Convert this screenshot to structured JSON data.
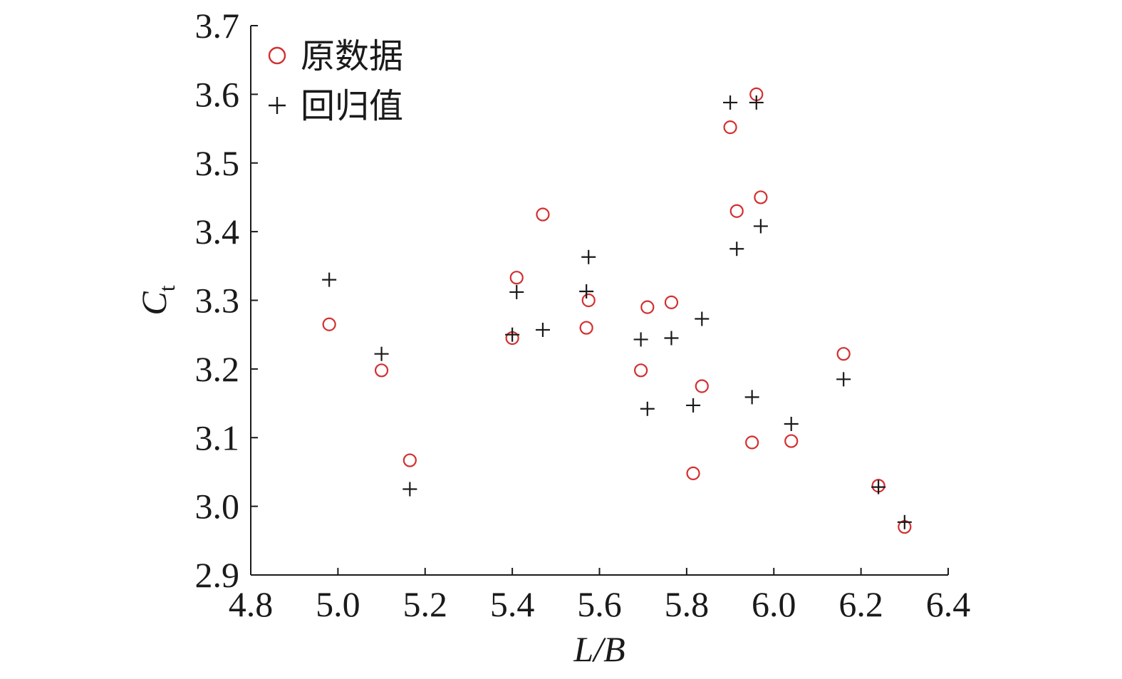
{
  "chart_data": {
    "type": "scatter",
    "xlabel": "L/B",
    "ylabel": "C",
    "ylabel_subscript": "t",
    "xlim": [
      4.8,
      6.4
    ],
    "ylim": [
      2.9,
      3.7
    ],
    "xticks": [
      "4.8",
      "5.0",
      "5.2",
      "5.4",
      "5.6",
      "5.8",
      "6.0",
      "6.2",
      "6.4"
    ],
    "yticks": [
      "2.9",
      "3.0",
      "3.1",
      "3.2",
      "3.3",
      "3.4",
      "3.5",
      "3.6",
      "3.7"
    ],
    "legend_position": "top-left",
    "grid": false,
    "series": [
      {
        "name": "原数据",
        "marker": "circle",
        "color": "#d32f2f",
        "points": [
          {
            "x": 4.98,
            "y": 3.265
          },
          {
            "x": 5.1,
            "y": 3.198
          },
          {
            "x": 5.165,
            "y": 3.067
          },
          {
            "x": 5.4,
            "y": 3.245
          },
          {
            "x": 5.41,
            "y": 3.333
          },
          {
            "x": 5.47,
            "y": 3.425
          },
          {
            "x": 5.57,
            "y": 3.26
          },
          {
            "x": 5.575,
            "y": 3.3
          },
          {
            "x": 5.695,
            "y": 3.198
          },
          {
            "x": 5.71,
            "y": 3.29
          },
          {
            "x": 5.765,
            "y": 3.297
          },
          {
            "x": 5.815,
            "y": 3.048
          },
          {
            "x": 5.835,
            "y": 3.175
          },
          {
            "x": 5.9,
            "y": 3.552
          },
          {
            "x": 5.915,
            "y": 3.43
          },
          {
            "x": 5.95,
            "y": 3.093
          },
          {
            "x": 5.96,
            "y": 3.6
          },
          {
            "x": 5.97,
            "y": 3.45
          },
          {
            "x": 6.04,
            "y": 3.095
          },
          {
            "x": 6.16,
            "y": 3.222
          },
          {
            "x": 6.24,
            "y": 3.03
          },
          {
            "x": 6.3,
            "y": 2.97
          }
        ]
      },
      {
        "name": "回归值",
        "marker": "plus",
        "color": "#1a1a1a",
        "points": [
          {
            "x": 4.98,
            "y": 3.33
          },
          {
            "x": 5.1,
            "y": 3.222
          },
          {
            "x": 5.165,
            "y": 3.025
          },
          {
            "x": 5.4,
            "y": 3.25
          },
          {
            "x": 5.41,
            "y": 3.312
          },
          {
            "x": 5.47,
            "y": 3.257
          },
          {
            "x": 5.57,
            "y": 3.313
          },
          {
            "x": 5.575,
            "y": 3.363
          },
          {
            "x": 5.695,
            "y": 3.243
          },
          {
            "x": 5.71,
            "y": 3.142
          },
          {
            "x": 5.765,
            "y": 3.245
          },
          {
            "x": 5.815,
            "y": 3.147
          },
          {
            "x": 5.835,
            "y": 3.273
          },
          {
            "x": 5.9,
            "y": 3.588
          },
          {
            "x": 5.915,
            "y": 3.375
          },
          {
            "x": 5.95,
            "y": 3.159
          },
          {
            "x": 5.96,
            "y": 3.588
          },
          {
            "x": 5.97,
            "y": 3.408
          },
          {
            "x": 6.04,
            "y": 3.12
          },
          {
            "x": 6.16,
            "y": 3.185
          },
          {
            "x": 6.24,
            "y": 3.028
          },
          {
            "x": 6.3,
            "y": 2.977
          }
        ]
      }
    ]
  }
}
